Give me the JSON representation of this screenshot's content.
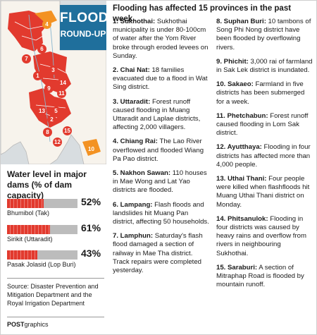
{
  "title": {
    "line1": "FLOOD",
    "line2": "ROUND-UP"
  },
  "headline": "Flooding has affected 15 provinces in the past week.",
  "map_markers": [
    "1",
    "2",
    "3",
    "4",
    "5",
    "6",
    "7",
    "8",
    "9",
    "10",
    "11",
    "12",
    "13",
    "14",
    "15"
  ],
  "dams": {
    "heading": "Water level in major dams (% of dam capacity)",
    "items": [
      {
        "name": "Bhumibol (Tak)",
        "percent": 52,
        "label": "52%"
      },
      {
        "name": "Sirikit (Uttaradit)",
        "percent": 61,
        "label": "61%"
      },
      {
        "name": "Pasak Jolasid (Lop Buri)",
        "percent": 43,
        "label": "43%"
      }
    ]
  },
  "source": "Source: Disaster Prevention and Mitigation Department and the Royal Irrigation Department",
  "credit": {
    "brand": "POST",
    "suffix": "graphics"
  },
  "reports": [
    {
      "label": "1. Sukhothai:",
      "text": " Sukhothai municipality is under 80-100cm of water after the Yom River broke through eroded levees on Sunday."
    },
    {
      "label": "2. Chai Nat:",
      "text": " 18 families evacuated due to a flood in Wat Sing district."
    },
    {
      "label": "3. Uttaradit:",
      "text": " Forest runoff caused flooding in Muang Uttaradit and Laplae districts, affecting 2,000 villagers."
    },
    {
      "label": "4. Chiang Rai:",
      "text": " The Lao River overflowed and flooded Wiang Pa Pao district."
    },
    {
      "label": "5. Nakhon Sawan:",
      "text": " 110 houses in Mae Wong and Lat Yao districts are flooded."
    },
    {
      "label": "6. Lampang:",
      "text": " Flash floods and landslides hit Muang Pan district, affecting 50 households."
    },
    {
      "label": "7. Lamphun:",
      "text": " Saturday's flash flood damaged a section of railway in Mae Tha district. Track repairs were completed yesterday."
    },
    {
      "label": "8. Suphan Buri:",
      "text": " 10 tambons of Song Phi Nong district have been flooded by overflowing rivers."
    },
    {
      "label": "9. Phichit:",
      "text": " 3,000 rai of farmland in Sak Lek district is inundated."
    },
    {
      "label": "10. Sakaeo:",
      "text": " Farmland in five districts has been submerged for a week."
    },
    {
      "label": "11. Phetchabun:",
      "text": " Forest runoff caused flooding in Lom Sak district."
    },
    {
      "label": "12. Ayutthaya:",
      "text": " Flooding in four districts has affected more than 4,000 people."
    },
    {
      "label": "13. Uthai Thani:",
      "text": " Four people were killed when flashfloods hit Muang Uthai Thani district on Monday."
    },
    {
      "label": "14. Phitsanulok:",
      "text": " Flooding in four districts was caused by heavy rains and overflow from rivers in neighbouring Sukhothai."
    },
    {
      "label": "15. Saraburi:",
      "text": " A section of Mitraphap Road is flooded by mountain runoff."
    }
  ]
}
